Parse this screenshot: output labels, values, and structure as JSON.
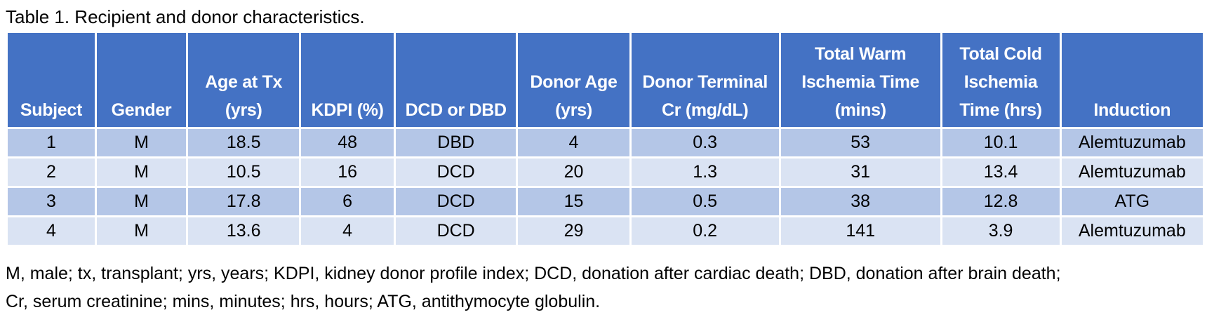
{
  "caption": "Table 1. Recipient and donor characteristics.",
  "table": {
    "headers": [
      "Subject",
      "Gender",
      "Age at Tx (yrs)",
      "KDPI (%)",
      "DCD or DBD",
      "Donor Age (yrs)",
      "Donor Terminal Cr (mg/dL)",
      "Total Warm Ischemia Time (mins)",
      "Total Cold Ischemia Time (hrs)",
      "Induction"
    ],
    "rows": [
      [
        "1",
        "M",
        "18.5",
        "48",
        "DBD",
        "4",
        "0.3",
        "53",
        "10.1",
        "Alemtuzumab"
      ],
      [
        "2",
        "M",
        "10.5",
        "16",
        "DCD",
        "20",
        "1.3",
        "31",
        "13.4",
        "Alemtuzumab"
      ],
      [
        "3",
        "M",
        "17.8",
        "6",
        "DCD",
        "15",
        "0.5",
        "38",
        "12.8",
        "ATG"
      ],
      [
        "4",
        "M",
        "13.6",
        "4",
        "DCD",
        "29",
        "0.2",
        "141",
        "3.9",
        "Alemtuzumab"
      ]
    ]
  },
  "footnotes": [
    "M, male; tx, transplant; yrs, years; KDPI, kidney donor profile index; DCD, donation after cardiac death; DBD, donation after brain death;",
    "Cr, serum creatinine; mins, minutes; hrs, hours; ATG, antithymocyte globulin."
  ],
  "colors": {
    "header_bg": "#4472c4",
    "row_band_dark": "#b4c6e7",
    "row_band_light": "#dae3f3"
  }
}
